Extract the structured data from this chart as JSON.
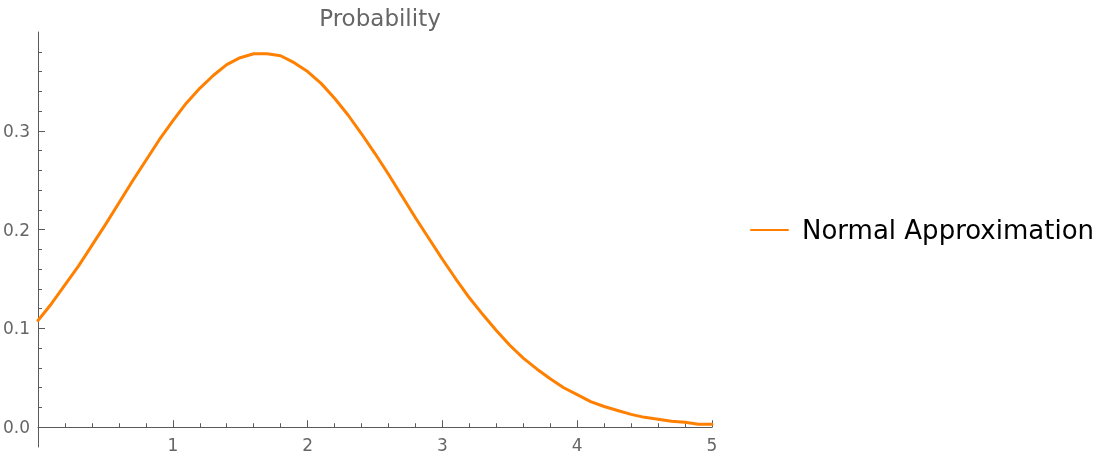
{
  "chart_data": {
    "type": "line",
    "title": "Probability",
    "x": [
      0,
      0.1,
      0.2,
      0.3,
      0.4,
      0.5,
      0.6,
      0.7,
      0.8,
      0.9,
      1,
      1.1,
      1.2,
      1.3,
      1.4,
      1.5,
      1.6,
      1.7,
      1.8,
      1.9,
      2,
      2.1,
      2.2,
      2.3,
      2.4,
      2.5,
      2.6,
      2.7,
      2.8,
      2.9,
      3,
      3.1,
      3.2,
      3.3,
      3.4,
      3.5,
      3.6,
      3.7,
      3.8,
      3.9,
      4,
      4.1,
      4.2,
      4.3,
      4.4,
      4.5,
      4.6,
      4.7,
      4.8,
      4.9,
      5
    ],
    "series": [
      {
        "name": "Normal Approximation",
        "color": "#ff8000",
        "values": [
          0.108,
          0.125,
          0.144,
          0.163,
          0.184,
          0.205,
          0.227,
          0.249,
          0.27,
          0.291,
          0.31,
          0.328,
          0.343,
          0.356,
          0.367,
          0.374,
          0.378,
          0.378,
          0.376,
          0.369,
          0.36,
          0.348,
          0.333,
          0.316,
          0.297,
          0.277,
          0.256,
          0.234,
          0.212,
          0.191,
          0.17,
          0.15,
          0.131,
          0.114,
          0.098,
          0.083,
          0.07,
          0.059,
          0.049,
          0.04,
          0.033,
          0.026,
          0.021,
          0.017,
          0.013,
          0.01,
          0.008,
          0.006,
          0.005,
          0.003,
          0.003
        ]
      }
    ],
    "xlim": [
      0,
      5
    ],
    "xticks": [
      {
        "value": 0.2,
        "label": null
      },
      {
        "value": 0.4,
        "label": null
      },
      {
        "value": 0.6,
        "label": null
      },
      {
        "value": 0.8,
        "label": null
      },
      1,
      {
        "value": 1.2,
        "label": null
      },
      {
        "value": 1.4,
        "label": null
      },
      {
        "value": 1.6,
        "label": null
      },
      {
        "value": 1.8,
        "label": null
      },
      2,
      {
        "value": 2.2,
        "label": null
      },
      {
        "value": 2.4,
        "label": null
      },
      {
        "value": 2.6,
        "label": null
      },
      {
        "value": 2.8,
        "label": null
      },
      3,
      {
        "value": 3.2,
        "label": null
      },
      {
        "value": 3.4,
        "label": null
      },
      {
        "value": 3.6,
        "label": null
      },
      {
        "value": 3.8,
        "label": null
      },
      4,
      {
        "value": 4.2,
        "label": null
      },
      {
        "value": 4.4,
        "label": null
      },
      {
        "value": 4.6,
        "label": null
      },
      {
        "value": 4.8,
        "label": null
      },
      5
    ],
    "ylim": [
      -0.02,
      0.4
    ],
    "yticks": [
      {
        "value": 0,
        "label": "0.0"
      },
      {
        "value": 0.02,
        "label": null
      },
      {
        "value": 0.04,
        "label": null
      },
      {
        "value": 0.06,
        "label": null
      },
      {
        "value": 0.08,
        "label": null
      },
      0.1,
      {
        "value": 0.12,
        "label": null
      },
      {
        "value": 0.14,
        "label": null
      },
      {
        "value": 0.16,
        "label": null
      },
      {
        "value": 0.18,
        "label": null
      },
      0.2,
      {
        "value": 0.22,
        "label": null
      },
      {
        "value": 0.24,
        "label": null
      },
      {
        "value": 0.26,
        "label": null
      },
      {
        "value": 0.28,
        "label": null
      },
      0.3,
      {
        "value": 0.32,
        "label": null
      },
      {
        "value": 0.34,
        "label": null
      },
      {
        "value": 0.36,
        "label": null
      },
      {
        "value": 0.38,
        "label": null
      }
    ],
    "legend": "right",
    "marker": "none",
    "line_style": "solid"
  }
}
